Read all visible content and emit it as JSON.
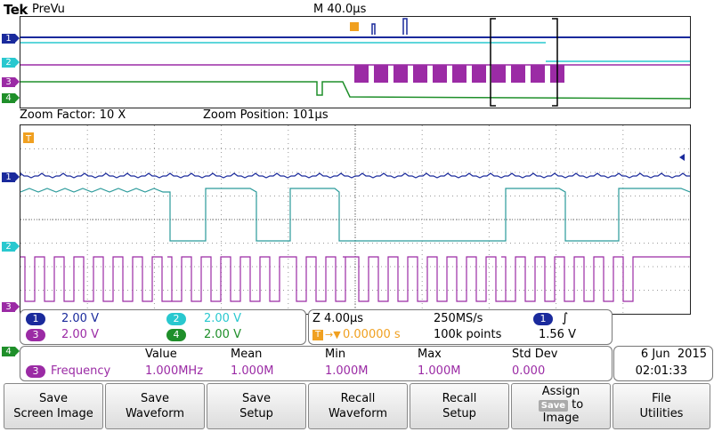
{
  "header": {
    "brand": "Tek",
    "mode": "PreVu",
    "timebase": "M 40.0μs"
  },
  "zoom": {
    "factor": "Zoom Factor: 10 X",
    "position": "Zoom Position: 101μs"
  },
  "trigger_marker": "T",
  "channels": [
    {
      "num": "1",
      "color": "#1a2a9c",
      "scale": "2.00 V"
    },
    {
      "num": "2",
      "color": "#29c8cf",
      "scale": "2.00 V"
    },
    {
      "num": "3",
      "color": "#9b2ba5",
      "scale": "2.00 V"
    },
    {
      "num": "4",
      "color": "#1f8f2a",
      "scale": "2.00 V"
    }
  ],
  "acquisition": {
    "zoom_scale": "Z 4.00μs",
    "sample_rate": "250MS/s",
    "trigger_delay": "0.00000 s",
    "record_length": "100k points",
    "trigger_channel": "1",
    "trigger_slope": "∫",
    "trigger_level": "1.56 V"
  },
  "measurement": {
    "headers": {
      "value": "Value",
      "mean": "Mean",
      "min": "Min",
      "max": "Max",
      "stddev": "Std Dev"
    },
    "channel": "3",
    "name": "Frequency",
    "value": "1.000MHz",
    "mean": "1.000M",
    "min": "1.000M",
    "max": "1.000M",
    "stddev": "0.000"
  },
  "datetime": {
    "date": "6 Jun  2015",
    "time": "02:01:33"
  },
  "buttons": [
    {
      "line1": "Save",
      "line2": "Screen Image"
    },
    {
      "line1": "Save",
      "line2": "Waveform"
    },
    {
      "line1": "Save",
      "line2": "Setup"
    },
    {
      "line1": "Recall",
      "line2": "Waveform"
    },
    {
      "line1": "Recall",
      "line2": "Setup"
    },
    {
      "line1": "Assign",
      "chip": "Save",
      "line2": "to",
      "line3": "Image"
    },
    {
      "line1": "File",
      "line2": "Utilities"
    }
  ],
  "colors": {
    "ch1": "#1a2a9c",
    "ch2": "#29c8cf",
    "ch2_zoom": "#2a9a9a",
    "ch3": "#9b2ba5",
    "ch4": "#1f8f2a",
    "trigger": "#f0a020"
  }
}
